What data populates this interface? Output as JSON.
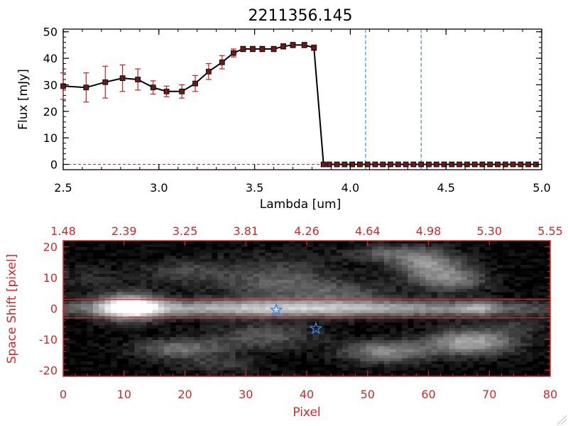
{
  "title": "2211356.145",
  "colors": {
    "axis": "#000000",
    "accent_red": "#cc2a2a",
    "errorbar": "#cc2020",
    "marker_fill": "#6a1a1a",
    "guide_blue": "#3a8ee0",
    "star_blue": "#3f7fe0",
    "background": "#ffffff"
  },
  "chart_data": [
    {
      "type": "line",
      "title": "2211356.145",
      "xlabel": "Lambda [um]",
      "ylabel": "Flux [mJy]",
      "xlim": [
        2.5,
        5.0
      ],
      "ylim": [
        -2,
        51
      ],
      "xticks": [
        2.5,
        3.0,
        3.5,
        4.0,
        4.5,
        5.0
      ],
      "xtick_labels": [
        "2.5",
        "3.0",
        "3.5",
        "4.0",
        "4.5",
        "5.0"
      ],
      "yticks": [
        0,
        10,
        20,
        30,
        40,
        50
      ],
      "ytick_labels": [
        "0",
        "10",
        "20",
        "30",
        "40",
        "50"
      ],
      "grid": false,
      "series": [
        {
          "name": "Flux",
          "x": [
            2.5,
            2.62,
            2.72,
            2.81,
            2.89,
            2.97,
            3.04,
            3.12,
            3.19,
            3.26,
            3.33,
            3.39,
            3.44,
            3.49,
            3.54,
            3.6,
            3.65,
            3.7,
            3.76,
            3.81,
            3.86,
            3.89,
            3.93,
            3.97,
            4.01,
            4.05,
            4.09,
            4.13,
            4.17,
            4.21,
            4.25,
            4.29,
            4.33,
            4.37,
            4.41,
            4.45,
            4.49,
            4.53,
            4.57,
            4.61,
            4.65,
            4.69,
            4.73,
            4.77,
            4.81,
            4.85,
            4.89,
            4.93,
            4.97
          ],
          "y": [
            29.5,
            29.0,
            31.0,
            32.5,
            32.0,
            29.0,
            27.5,
            27.5,
            30.5,
            35.0,
            38.5,
            42.0,
            43.5,
            43.5,
            43.5,
            43.5,
            44.5,
            45.0,
            45.0,
            44.0,
            0,
            0,
            0,
            0,
            0,
            0,
            0,
            0,
            0,
            0,
            0,
            0,
            0,
            0,
            0,
            0,
            0,
            0,
            0,
            0,
            0,
            0,
            0,
            0,
            0,
            0,
            0,
            0,
            0
          ],
          "yerr": [
            5.0,
            5.5,
            6.0,
            5.0,
            4.0,
            2.5,
            2.0,
            2.5,
            3.0,
            3.0,
            2.5,
            1.5,
            1.0,
            1.0,
            1.0,
            1.0,
            1.0,
            1.0,
            1.0,
            1.0,
            0,
            0,
            0,
            0,
            0,
            0,
            0,
            0,
            0,
            0,
            0,
            0,
            0,
            0,
            0,
            0,
            0,
            0,
            0,
            0,
            0,
            0,
            0,
            0,
            0,
            0,
            0,
            0,
            0
          ]
        }
      ],
      "vertical_lines": [
        4.08,
        4.37
      ],
      "reference_lines": [
        0
      ]
    },
    {
      "type": "heatmap",
      "xlabel": "Pixel",
      "ylabel": "Space Shift [pixel]",
      "xlim": [
        0,
        80
      ],
      "ylim": [
        -22,
        22
      ],
      "xticks": [
        0,
        10,
        20,
        30,
        40,
        50,
        60,
        70,
        80
      ],
      "xtick_labels": [
        "0",
        "10",
        "20",
        "30",
        "40",
        "50",
        "60",
        "70",
        "80"
      ],
      "yticks": [
        -20,
        -10,
        0,
        10,
        20
      ],
      "ytick_labels": [
        "-20",
        "-10",
        "0",
        "10",
        "20"
      ],
      "top_tick_positions": [
        0,
        10,
        20,
        30,
        40,
        50,
        60,
        70,
        80
      ],
      "top_tick_labels": [
        "1.48",
        "2.39",
        "3.25",
        "3.81",
        "4.26",
        "4.64",
        "4.98",
        "5.30",
        "5.55"
      ],
      "extraction_band": [
        -3,
        3
      ],
      "stars": [
        {
          "x": 35,
          "y": -0.5
        },
        {
          "x": 41.5,
          "y": -6.5
        }
      ],
      "sources": [
        {
          "x": 11,
          "y": 0.5,
          "sx": 3.5,
          "sy": 2.8,
          "amp": 1.0
        },
        {
          "x": 38,
          "y": 0,
          "sx": 27,
          "sy": 1.9,
          "amp": 0.72
        },
        {
          "x": 68,
          "y": 0,
          "sx": 2,
          "sy": 1.5,
          "amp": 0.32
        },
        {
          "x": 60,
          "y": 14,
          "sx": 4,
          "sy": 3,
          "amp": 0.5
        },
        {
          "x": 54,
          "y": 18,
          "sx": 5,
          "sy": 2,
          "amp": 0.3
        },
        {
          "x": 64,
          "y": 9,
          "sx": 4,
          "sy": 2.5,
          "amp": 0.4
        },
        {
          "x": 67,
          "y": -11,
          "sx": 5,
          "sy": 2.8,
          "amp": 0.62
        },
        {
          "x": 53,
          "y": -14,
          "sx": 5,
          "sy": 2.5,
          "amp": 0.48
        },
        {
          "x": 19,
          "y": -13,
          "sx": 5,
          "sy": 2.2,
          "amp": 0.4
        },
        {
          "x": 33,
          "y": -9,
          "sx": 6,
          "sy": 3,
          "amp": 0.28
        },
        {
          "x": 35,
          "y": 9,
          "sx": 7,
          "sy": 5,
          "amp": 0.3
        },
        {
          "x": 20,
          "y": 12,
          "sx": 5,
          "sy": 3,
          "amp": 0.2
        },
        {
          "x": 46,
          "y": 5,
          "sx": 6,
          "sy": 2.5,
          "amp": 0.22
        },
        {
          "x": 4,
          "y": 10,
          "sx": 5,
          "sy": 3,
          "amp": 0.12
        },
        {
          "x": 74,
          "y": -6,
          "sx": 4,
          "sy": 2,
          "amp": 0.15
        },
        {
          "x": 26,
          "y": -18,
          "sx": 5,
          "sy": 2,
          "amp": 0.18
        }
      ]
    }
  ]
}
